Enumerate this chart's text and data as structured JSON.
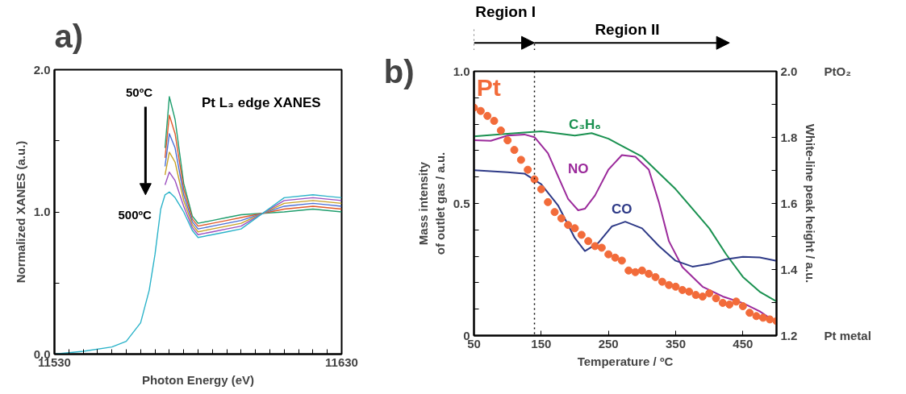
{
  "chart_data": [
    {
      "type": "line",
      "xlabel": "Photon Energy (eV)",
      "ylabel": "Normalized XANES (a.u.)",
      "xlim": [
        11530,
        11630
      ],
      "ylim": [
        0,
        2
      ],
      "xticks": [
        11530,
        {
          "value": 11535,
          "label": null
        },
        {
          "value": 11540,
          "label": null
        },
        {
          "value": 11545,
          "label": null
        },
        {
          "value": 11550,
          "label": null
        },
        {
          "value": 11555,
          "label": null
        },
        {
          "value": 11560,
          "label": null
        },
        {
          "value": 11565,
          "label": null
        },
        {
          "value": 11570,
          "label": null
        },
        {
          "value": 11575,
          "label": null
        },
        {
          "value": 11580,
          "label": null
        },
        {
          "value": 11585,
          "label": null
        },
        {
          "value": 11590,
          "label": null
        },
        {
          "value": 11595,
          "label": null
        },
        {
          "value": 11600,
          "label": null
        },
        {
          "value": 11605,
          "label": null
        },
        {
          "value": 11610,
          "label": null
        },
        {
          "value": 11615,
          "label": null
        },
        {
          "value": 11620,
          "label": null
        },
        {
          "value": 11625,
          "label": null
        },
        11630
      ],
      "yticks": [
        {
          "value": 0,
          "label": "0.0"
        },
        {
          "value": 0.5,
          "label": null
        },
        {
          "value": 1,
          "label": "1.0"
        },
        {
          "value": 1.5,
          "label": null
        },
        {
          "value": 2,
          "label": "2.0"
        }
      ],
      "x": [
        11530,
        11540,
        11550,
        11555,
        11560,
        11563,
        11565,
        11567,
        11568.5,
        11570,
        11572,
        11575,
        11578,
        11580,
        11585,
        11590,
        11595,
        11610,
        11620,
        11625,
        11630
      ],
      "annotations": [
        "a)",
        "50ºC",
        "500ºC",
        "Pt L₃ edge XANES"
      ],
      "grid": false,
      "line_style": "solid",
      "series": [
        {
          "color": "#1f9e6e",
          "values": [
            null,
            null,
            null,
            null,
            null,
            null,
            null,
            null,
            1.45,
            1.81,
            1.65,
            1.2,
            0.97,
            0.92,
            0.94,
            0.96,
            0.98,
            1.0,
            1.02,
            1.01,
            1.0
          ]
        },
        {
          "color": "#e05a2b",
          "values": [
            null,
            null,
            null,
            null,
            null,
            null,
            null,
            null,
            1.38,
            1.68,
            1.55,
            1.16,
            0.95,
            0.9,
            0.92,
            0.94,
            0.96,
            1.02,
            1.04,
            1.03,
            1.02
          ]
        },
        {
          "color": "#4a6fd6",
          "values": [
            null,
            null,
            null,
            null,
            null,
            null,
            null,
            null,
            1.32,
            1.55,
            1.45,
            1.12,
            0.93,
            0.88,
            0.9,
            0.92,
            0.94,
            1.04,
            1.06,
            1.05,
            1.04
          ]
        },
        {
          "color": "#c9a227",
          "values": [
            null,
            null,
            null,
            null,
            null,
            null,
            null,
            null,
            1.26,
            1.42,
            1.35,
            1.08,
            0.91,
            0.86,
            0.88,
            0.9,
            0.92,
            1.06,
            1.08,
            1.07,
            1.06
          ]
        },
        {
          "color": "#9b4fc0",
          "values": [
            null,
            null,
            null,
            null,
            null,
            null,
            null,
            null,
            1.19,
            1.28,
            1.22,
            1.04,
            0.89,
            0.84,
            0.86,
            0.88,
            0.9,
            1.08,
            1.1,
            1.09,
            1.08
          ]
        },
        {
          "color": "#2bb3c9",
          "values": [
            0,
            0.02,
            0.05,
            0.09,
            0.22,
            0.45,
            0.7,
            1.02,
            1.12,
            1.14,
            1.1,
            1.0,
            0.87,
            0.82,
            0.84,
            0.86,
            0.88,
            1.1,
            1.12,
            1.11,
            1.1
          ]
        }
      ]
    },
    {
      "type": "line",
      "xlabel": "Temperature / ºC",
      "ylabel": "Mass intensity of outlet gas / a.u.",
      "y2label": "White-line peak height / a.u.",
      "xlim": [
        50,
        500
      ],
      "ylim": [
        0,
        1
      ],
      "y2lim": [
        1.2,
        2.0
      ],
      "xticks": [
        50,
        150,
        250,
        350,
        450
      ],
      "yticks": [
        0,
        {
          "value": 0.1,
          "label": null
        },
        {
          "value": 0.2,
          "label": null
        },
        {
          "value": 0.3,
          "label": null
        },
        {
          "value": 0.4,
          "label": null
        },
        0.5,
        {
          "value": 0.6,
          "label": null
        },
        {
          "value": 0.7,
          "label": null
        },
        {
          "value": 0.8,
          "label": null
        },
        {
          "value": 0.9,
          "label": null
        },
        {
          "value": 1,
          "label": "1.0"
        }
      ],
      "y2ticks": [
        1.2,
        {
          "value": 1.3,
          "label": null
        },
        1.4,
        {
          "value": 1.5,
          "label": null
        },
        1.6,
        {
          "value": 1.7,
          "label": null
        },
        1.8,
        {
          "value": 1.9,
          "label": null
        },
        {
          "value": 2,
          "label": "2.0"
        }
      ],
      "annotations": [
        "b)",
        "Region I",
        "Region II",
        "PtO₂",
        "Pt metal"
      ],
      "ref_lines": [
        {
          "axis": "x",
          "value": 140,
          "line_style": "dotted",
          "color": "#000000"
        }
      ],
      "grid": false,
      "line_style": "solid",
      "series": [
        {
          "name": "C₃H₆",
          "color": "#1a9150",
          "x": [
            50,
            100,
            150,
            200,
            225,
            250,
            300,
            350,
            400,
            425,
            450,
            475,
            500
          ],
          "values": [
            0.754,
            0.764,
            0.773,
            0.757,
            0.766,
            0.745,
            0.677,
            0.554,
            0.406,
            0.308,
            0.222,
            0.166,
            0.129
          ]
        },
        {
          "name": "NO",
          "color": "#9b2a9b",
          "x": [
            50,
            75,
            100,
            125,
            140,
            160,
            175,
            190,
            205,
            215,
            230,
            250,
            270,
            290,
            310,
            325,
            340,
            360,
            390,
            420,
            450,
            475,
            500
          ],
          "values": [
            0.739,
            0.737,
            0.757,
            0.761,
            0.751,
            0.69,
            0.603,
            0.517,
            0.474,
            0.48,
            0.53,
            0.628,
            0.683,
            0.677,
            0.628,
            0.505,
            0.357,
            0.259,
            0.185,
            0.148,
            0.123,
            0.092,
            0.049
          ]
        },
        {
          "name": "CO",
          "color": "#2e3a87",
          "x": [
            50,
            100,
            125,
            150,
            175,
            200,
            215,
            235,
            255,
            275,
            300,
            325,
            350,
            375,
            400,
            425,
            450,
            475,
            500
          ],
          "values": [
            0.626,
            0.618,
            0.613,
            0.573,
            0.493,
            0.369,
            0.32,
            0.351,
            0.413,
            0.431,
            0.406,
            0.339,
            0.283,
            0.261,
            0.271,
            0.289,
            0.298,
            0.296,
            0.283
          ]
        },
        {
          "name": "Pt",
          "type": "scatter",
          "axis": "y2",
          "marker": "circle",
          "color": "#f26b3a",
          "x": [
            50,
            60,
            70,
            80,
            90,
            100,
            110,
            120,
            130,
            140,
            150,
            160,
            170,
            180,
            190,
            200,
            210,
            220,
            230,
            240,
            250,
            260,
            270,
            280,
            290,
            300,
            310,
            320,
            330,
            340,
            350,
            360,
            370,
            380,
            390,
            400,
            410,
            420,
            430,
            440,
            450,
            460,
            470,
            480,
            490,
            500
          ],
          "values": [
            1.89,
            1.88,
            1.865,
            1.85,
            1.821,
            1.791,
            1.762,
            1.732,
            1.702,
            1.673,
            1.643,
            1.604,
            1.574,
            1.555,
            1.535,
            1.525,
            1.505,
            1.486,
            1.471,
            1.466,
            1.446,
            1.436,
            1.427,
            1.397,
            1.392,
            1.397,
            1.387,
            1.377,
            1.363,
            1.353,
            1.348,
            1.338,
            1.333,
            1.323,
            1.318,
            1.328,
            1.313,
            1.299,
            1.294,
            1.303,
            1.289,
            1.269,
            1.259,
            1.254,
            1.249,
            1.244
          ]
        }
      ]
    }
  ]
}
